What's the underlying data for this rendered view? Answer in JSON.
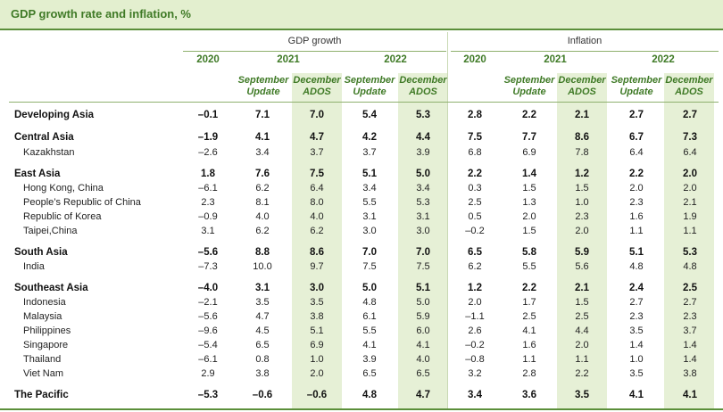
{
  "title": "GDP growth rate and inflation, %",
  "groups": {
    "gdp": "GDP growth",
    "inflation": "Inflation"
  },
  "years": {
    "y2020": "2020",
    "y2021": "2021",
    "y2022": "2022"
  },
  "sub_headers": {
    "sept_line1": "September",
    "sept_line2": "Update",
    "dec_line1": "December",
    "dec_line2": "ADOS"
  },
  "columns": [
    "GDP 2020",
    "GDP 2021 September Update",
    "GDP 2021 December ADOS",
    "GDP 2022 September Update",
    "GDP 2022 December ADOS",
    "Inflation 2020",
    "Inflation 2021 September Update",
    "Inflation 2021 December ADOS",
    "Inflation 2022 September Update",
    "Inflation 2022 December ADOS"
  ],
  "rows": [
    {
      "label": "Developing Asia",
      "bold": true,
      "values": [
        "–0.1",
        "7.1",
        "7.0",
        "5.4",
        "5.3",
        "2.8",
        "2.2",
        "2.1",
        "2.7",
        "2.7"
      ]
    },
    {
      "label": "Central Asia",
      "bold": true,
      "values": [
        "–1.9",
        "4.1",
        "4.7",
        "4.2",
        "4.4",
        "7.5",
        "7.7",
        "8.6",
        "6.7",
        "7.3"
      ]
    },
    {
      "label": "Kazakhstan",
      "bold": false,
      "values": [
        "–2.6",
        "3.4",
        "3.7",
        "3.7",
        "3.9",
        "6.8",
        "6.9",
        "7.8",
        "6.4",
        "6.4"
      ]
    },
    {
      "label": "East Asia",
      "bold": true,
      "values": [
        "1.8",
        "7.6",
        "7.5",
        "5.1",
        "5.0",
        "2.2",
        "1.4",
        "1.2",
        "2.2",
        "2.0"
      ]
    },
    {
      "label": "Hong Kong, China",
      "bold": false,
      "values": [
        "–6.1",
        "6.2",
        "6.4",
        "3.4",
        "3.4",
        "0.3",
        "1.5",
        "1.5",
        "2.0",
        "2.0"
      ]
    },
    {
      "label": "People’s Republic of China",
      "bold": false,
      "values": [
        "2.3",
        "8.1",
        "8.0",
        "5.5",
        "5.3",
        "2.5",
        "1.3",
        "1.0",
        "2.3",
        "2.1"
      ]
    },
    {
      "label": "Republic of Korea",
      "bold": false,
      "values": [
        "–0.9",
        "4.0",
        "4.0",
        "3.1",
        "3.1",
        "0.5",
        "2.0",
        "2.3",
        "1.6",
        "1.9"
      ]
    },
    {
      "label": "Taipei,China",
      "bold": false,
      "values": [
        "3.1",
        "6.2",
        "6.2",
        "3.0",
        "3.0",
        "–0.2",
        "1.5",
        "2.0",
        "1.1",
        "1.1"
      ]
    },
    {
      "label": "South Asia",
      "bold": true,
      "values": [
        "–5.6",
        "8.8",
        "8.6",
        "7.0",
        "7.0",
        "6.5",
        "5.8",
        "5.9",
        "5.1",
        "5.3"
      ]
    },
    {
      "label": "India",
      "bold": false,
      "values": [
        "–7.3",
        "10.0",
        "9.7",
        "7.5",
        "7.5",
        "6.2",
        "5.5",
        "5.6",
        "4.8",
        "4.8"
      ]
    },
    {
      "label": "Southeast Asia",
      "bold": true,
      "values": [
        "–4.0",
        "3.1",
        "3.0",
        "5.0",
        "5.1",
        "1.2",
        "2.2",
        "2.1",
        "2.4",
        "2.5"
      ]
    },
    {
      "label": "Indonesia",
      "bold": false,
      "values": [
        "–2.1",
        "3.5",
        "3.5",
        "4.8",
        "5.0",
        "2.0",
        "1.7",
        "1.5",
        "2.7",
        "2.7"
      ]
    },
    {
      "label": "Malaysia",
      "bold": false,
      "values": [
        "–5.6",
        "4.7",
        "3.8",
        "6.1",
        "5.9",
        "–1.1",
        "2.5",
        "2.5",
        "2.3",
        "2.3"
      ]
    },
    {
      "label": "Philippines",
      "bold": false,
      "values": [
        "–9.6",
        "4.5",
        "5.1",
        "5.5",
        "6.0",
        "2.6",
        "4.1",
        "4.4",
        "3.5",
        "3.7"
      ]
    },
    {
      "label": "Singapore",
      "bold": false,
      "values": [
        "–5.4",
        "6.5",
        "6.9",
        "4.1",
        "4.1",
        "–0.2",
        "1.6",
        "2.0",
        "1.4",
        "1.4"
      ]
    },
    {
      "label": "Thailand",
      "bold": false,
      "values": [
        "–6.1",
        "0.8",
        "1.0",
        "3.9",
        "4.0",
        "–0.8",
        "1.1",
        "1.1",
        "1.0",
        "1.4"
      ]
    },
    {
      "label": "Viet Nam",
      "bold": false,
      "values": [
        "2.9",
        "3.8",
        "2.0",
        "6.5",
        "6.5",
        "3.2",
        "2.8",
        "2.2",
        "3.5",
        "3.8"
      ]
    },
    {
      "label": "The Pacific",
      "bold": true,
      "values": [
        "–5.3",
        "–0.6",
        "–0.6",
        "4.8",
        "4.7",
        "3.4",
        "3.6",
        "3.5",
        "4.1",
        "4.1"
      ]
    }
  ],
  "colors": {
    "accent": "#3f7a26",
    "title_bg": "#e3efcf",
    "highlight_column": "#e6f0d6",
    "rule": "#5b8f3a"
  }
}
